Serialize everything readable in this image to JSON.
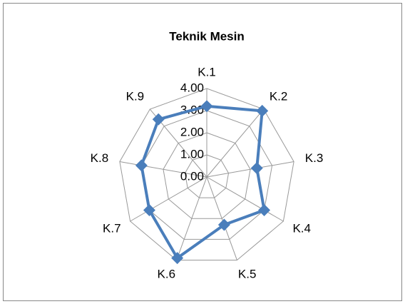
{
  "chart_data": {
    "type": "radar",
    "title": "Teknik Mesin",
    "categories": [
      "K.1",
      "K.2",
      "K.3",
      "K.4",
      "K.5",
      "K.6",
      "K.7",
      "K.8",
      "K.9"
    ],
    "series": [
      {
        "name": "Teknik Mesin",
        "color": "#4a7ebb",
        "values": [
          3.2,
          3.9,
          2.3,
          3.0,
          2.3,
          3.9,
          3.0,
          3.0,
          3.4
        ]
      }
    ],
    "rlim": [
      0,
      4
    ],
    "rticks": [
      {
        "value": 0,
        "label": "0.00"
      },
      {
        "value": 1,
        "label": "1.00"
      },
      {
        "value": 2,
        "label": "2.00"
      },
      {
        "value": 3,
        "label": "3.00"
      },
      {
        "value": 4,
        "label": "4.00"
      }
    ],
    "grid": true
  }
}
